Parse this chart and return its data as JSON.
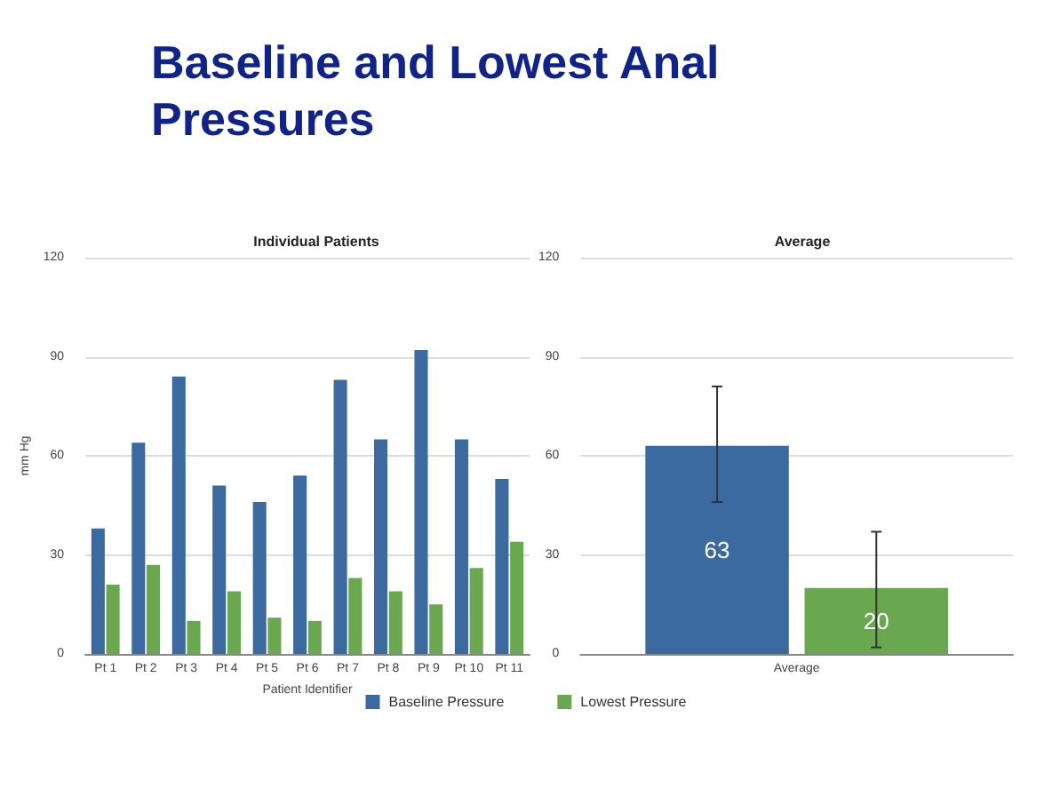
{
  "chart_data": [
    {
      "type": "bar",
      "title": "Baseline and Lowest Anal Pressures",
      "subtitle": "Individual Patients",
      "xlabel": "Patient Identifier",
      "ylabel": "mm Hg",
      "categories": [
        "Pt 1",
        "Pt 2",
        "Pt 3",
        "Pt 4",
        "Pt 5",
        "Pt 6",
        "Pt 7",
        "Pt 8",
        "Pt 9",
        "Pt 10",
        "Pt 11"
      ],
      "series": [
        {
          "name": "Baseline Pressure",
          "color": "#3a6aa0",
          "values": [
            38,
            64,
            84,
            51,
            46,
            54,
            83,
            65,
            92,
            65,
            53
          ]
        },
        {
          "name": "Lowest Pressure",
          "color": "#6aa84f",
          "values": [
            21,
            27,
            10,
            19,
            11,
            10,
            23,
            19,
            15,
            26,
            34
          ]
        }
      ],
      "ylim": [
        0,
        120
      ],
      "yticks": [
        0,
        30,
        60,
        90,
        120
      ],
      "grid": "y",
      "legend": "bottom"
    },
    {
      "type": "bar",
      "title": "Average",
      "categories": [
        "Average"
      ],
      "series": [
        {
          "color": "#3a6aa0",
          "values": [
            63
          ],
          "errors": [
            [
              46,
              81
            ]
          ]
        },
        {
          "color": "#6aa84f",
          "values": [
            20
          ],
          "errors": [
            [
              2,
              37
            ]
          ]
        }
      ],
      "ylim": [
        0,
        120
      ],
      "yticks": [
        0,
        30,
        60,
        90,
        120
      ],
      "grid": "y",
      "data_labels": true
    }
  ]
}
